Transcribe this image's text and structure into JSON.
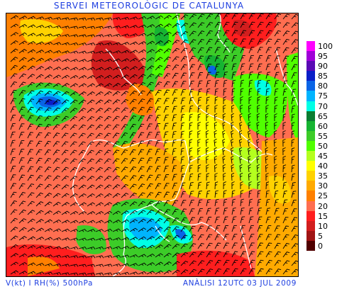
{
  "title": "SERVEI METEOROLÒGIC DE CATALUNYA",
  "footer": {
    "left": "V(kt) I RH(%) 500hPa",
    "right": "ANÀLISI 12UTC 03 JUL 2009"
  },
  "legend": {
    "items": [
      {
        "label": "100",
        "color": "#ff00ff"
      },
      {
        "label": "95",
        "color": "#a000d8"
      },
      {
        "label": "90",
        "color": "#5a0ab4"
      },
      {
        "label": "85",
        "color": "#0a1ec8"
      },
      {
        "label": "80",
        "color": "#0a64e6"
      },
      {
        "label": "75",
        "color": "#00b4ff"
      },
      {
        "label": "70",
        "color": "#00ffe6"
      },
      {
        "label": "65",
        "color": "#0a7d32"
      },
      {
        "label": "60",
        "color": "#16b432"
      },
      {
        "label": "55",
        "color": "#3ccc28"
      },
      {
        "label": "50",
        "color": "#50ff00"
      },
      {
        "label": "45",
        "color": "#b4ff1e"
      },
      {
        "label": "40",
        "color": "#ffff00"
      },
      {
        "label": "35",
        "color": "#ffd200"
      },
      {
        "label": "30",
        "color": "#ffaa00"
      },
      {
        "label": "25",
        "color": "#ff8000"
      },
      {
        "label": "20",
        "color": "#ff6e50"
      },
      {
        "label": "15",
        "color": "#ff1e1e"
      },
      {
        "label": "10",
        "color": "#d21e1e"
      },
      {
        "label": "5",
        "color": "#a01414"
      },
      {
        "label": "0",
        "color": "#500000"
      }
    ]
  },
  "colors": {
    "title_text": "#1e3fe0",
    "coast_border": "#ffffff",
    "wind_barb": "#000000"
  }
}
